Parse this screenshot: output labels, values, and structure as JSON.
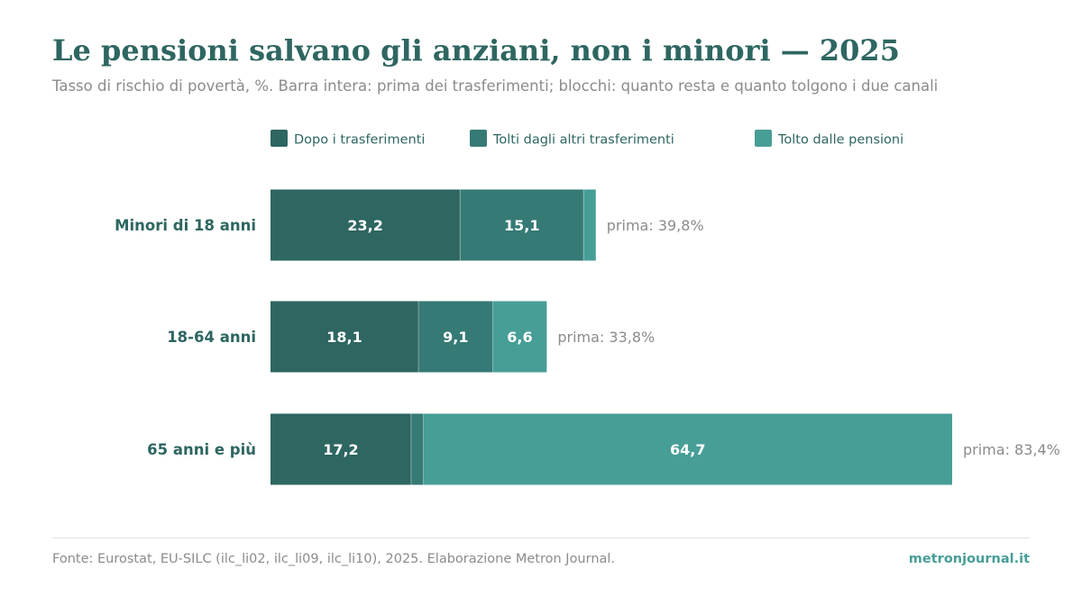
{
  "title": "Le pensioni salvano gli anziani, non i minori — 2025",
  "subtitle": "Tasso di rischio di povertà, %. Barra intera: prima dei trasferimenti; blocchi: quanto resta e quanto tolgono i due canali",
  "footer": {
    "source": "Fonte: Eurostat, EU-SILC (ilc_li02, ilc_li09, ilc_li10), 2025. Elaborazione Metron Journal.",
    "brand": "metronjournal.it"
  },
  "colors": {
    "dopo": "#2e6661",
    "altri": "#357a75",
    "pensioni": "#479e97",
    "label_dark": "#2e6661",
    "muted": "#8b8b8b"
  },
  "chart_data": {
    "type": "bar",
    "orientation": "horizontal",
    "stacked": true,
    "unit": "%",
    "legend_position": "top",
    "categories": [
      "Minori di 18 anni",
      "18-64 anni",
      "65 anni e più"
    ],
    "series": [
      {
        "name": "Dopo i trasferimenti",
        "values": [
          23.2,
          18.1,
          17.2
        ],
        "labels": [
          "23,2",
          "18,1",
          "17,2"
        ]
      },
      {
        "name": "Tolti dagli altri trasferimenti",
        "values": [
          15.1,
          9.1,
          1.5
        ],
        "labels": [
          "15,1",
          "9,1",
          ""
        ]
      },
      {
        "name": "Tolto dalle pensioni",
        "values": [
          1.5,
          6.6,
          64.7
        ],
        "labels": [
          "",
          "6,6",
          "64,7"
        ]
      }
    ],
    "totals": [
      39.8,
      33.8,
      83.4
    ],
    "total_labels": [
      "prima: 39,8%",
      "prima: 33,8%",
      "prima: 83,4%"
    ],
    "xlim": [
      0,
      83.4
    ],
    "grid": false
  }
}
